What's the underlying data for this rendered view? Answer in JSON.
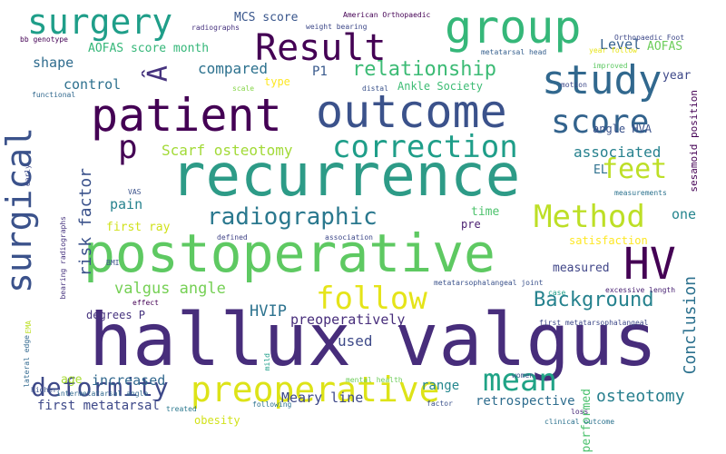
{
  "words": [
    {
      "text": "hallux valgus",
      "color": "#472d7b"
    },
    {
      "text": "recurrence",
      "color": "#2d9b87"
    },
    {
      "text": "postoperative",
      "color": "#5ec962"
    },
    {
      "text": "patient",
      "color": "#440154"
    },
    {
      "text": "outcome",
      "color": "#3b528b"
    },
    {
      "text": "group",
      "color": "#35b779"
    },
    {
      "text": "preoperative",
      "color": "#dde318"
    },
    {
      "text": "surgery",
      "color": "#1f9e89"
    },
    {
      "text": "Result",
      "color": "#440154"
    },
    {
      "text": "study",
      "color": "#31688e"
    },
    {
      "text": "surgical",
      "color": "#3b528b"
    },
    {
      "text": "correction",
      "color": "#1f9e89"
    },
    {
      "text": "score",
      "color": "#33638d"
    },
    {
      "text": "Method",
      "color": "#bddf26"
    },
    {
      "text": "HV",
      "color": "#440154"
    },
    {
      "text": "follow",
      "color": "#e5e419"
    },
    {
      "text": "mean",
      "color": "#20a386"
    },
    {
      "text": "deformity",
      "color": "#3e4989"
    },
    {
      "text": "radiographic",
      "color": "#2a788e"
    },
    {
      "text": "p",
      "color": "#440154"
    },
    {
      "text": "Â",
      "color": "#46337e"
    },
    {
      "text": "feet",
      "color": "#bddf26"
    },
    {
      "text": "relationship",
      "color": "#3cbb75"
    },
    {
      "text": "Scarf osteotomy",
      "color": "#a2da37"
    },
    {
      "text": "associated",
      "color": "#26818e"
    },
    {
      "text": "Background",
      "color": "#26828e"
    },
    {
      "text": "risk factor",
      "color": "#3b528b"
    },
    {
      "text": "valgus angle",
      "color": "#75d054"
    },
    {
      "text": "osteotomy",
      "color": "#277f8e"
    },
    {
      "text": "Conclusion",
      "color": "#2c718e"
    },
    {
      "text": "Meary line",
      "color": "#3e4989"
    },
    {
      "text": "compared",
      "color": "#2c718e"
    },
    {
      "text": "HVIP",
      "color": "#2c728e"
    },
    {
      "text": "preoperatively",
      "color": "#472d7b"
    },
    {
      "text": "increased",
      "color": "#31688e"
    },
    {
      "text": "first metatarsal",
      "color": "#3e4989"
    },
    {
      "text": "retrospective",
      "color": "#2e6d8e"
    },
    {
      "text": "performed",
      "color": "#4ac16d"
    },
    {
      "text": "Level",
      "color": "#34618d"
    },
    {
      "text": "MCS score",
      "color": "#39568c"
    },
    {
      "text": "AOFAS",
      "color": "#6ccd5a"
    },
    {
      "text": "shape",
      "color": "#2f6c8e"
    },
    {
      "text": "AOFAS score month",
      "color": "#35b779"
    },
    {
      "text": "control",
      "color": "#2d708e"
    },
    {
      "text": "P1",
      "color": "#38598c"
    },
    {
      "text": "type",
      "color": "#fde725"
    },
    {
      "text": "Ankle Society",
      "color": "#3dbc74"
    },
    {
      "text": "year",
      "color": "#3e4989"
    },
    {
      "text": "first ray",
      "color": "#d0e11c"
    },
    {
      "text": "pain",
      "color": "#26828e"
    },
    {
      "text": "pre",
      "color": "#481d6f"
    },
    {
      "text": "time",
      "color": "#4cc26c"
    },
    {
      "text": "angle HVA",
      "color": "#3b528b"
    },
    {
      "text": "EL",
      "color": "#2d708e"
    },
    {
      "text": "one",
      "color": "#25858e"
    },
    {
      "text": "satisfaction",
      "color": "#fde725"
    },
    {
      "text": "measured",
      "color": "#404688"
    },
    {
      "text": "used",
      "color": "#3e4a89"
    },
    {
      "text": "degrees P",
      "color": "#46337e"
    },
    {
      "text": "age",
      "color": "#a8db34"
    },
    {
      "text": "range",
      "color": "#24878e"
    },
    {
      "text": "obesity",
      "color": "#d2e21b"
    },
    {
      "text": "sesamoid position",
      "color": "#440154"
    },
    {
      "text": "American Orthopaedic",
      "color": "#440154"
    },
    {
      "text": "Orthopaedic Foot",
      "color": "#3e4989"
    },
    {
      "text": "radiographs",
      "color": "#46327e"
    },
    {
      "text": "weight bearing",
      "color": "#3e4989"
    },
    {
      "text": "metatarsal head",
      "color": "#355f8d"
    },
    {
      "text": "year follow",
      "color": "#e7e419"
    },
    {
      "text": "improved",
      "color": "#5ec962"
    },
    {
      "text": "bb genotype",
      "color": "#440154"
    },
    {
      "text": "functional",
      "color": "#31688e"
    },
    {
      "text": "scale",
      "color": "#86d549"
    },
    {
      "text": "distal",
      "color": "#3b528b"
    },
    {
      "text": "motion",
      "color": "#3e4989"
    },
    {
      "text": "early",
      "color": "#3e4a89"
    },
    {
      "text": "VAS",
      "color": "#3b528b"
    },
    {
      "text": "defined",
      "color": "#414487"
    },
    {
      "text": "association",
      "color": "#3e4989"
    },
    {
      "text": "measurements",
      "color": "#2c728e"
    },
    {
      "text": "BMI",
      "color": "#3b528b"
    },
    {
      "text": "effect",
      "color": "#440154"
    },
    {
      "text": "bearing radiographs",
      "color": "#46337e"
    },
    {
      "text": "EMA",
      "color": "#bddf26"
    },
    {
      "text": "metatarsophalangeal joint",
      "color": "#3b528b"
    },
    {
      "text": "excessive length",
      "color": "#482173"
    },
    {
      "text": "case",
      "color": "#1f9e89"
    },
    {
      "text": "first metatarsophalangeal",
      "color": "#3e4989"
    },
    {
      "text": "mild",
      "color": "#1f9e89"
    },
    {
      "text": "lateral edge",
      "color": "#31688e"
    },
    {
      "text": "higher",
      "color": "#3b528b"
    },
    {
      "text": "intermetatarsal angle",
      "color": "#31688e"
    },
    {
      "text": "treated",
      "color": "#2a788e"
    },
    {
      "text": "following",
      "color": "#2c728e"
    },
    {
      "text": "mental health",
      "color": "#6ccd5a"
    },
    {
      "text": "factor",
      "color": "#3b528b"
    },
    {
      "text": "women",
      "color": "#3b528b"
    },
    {
      "text": "loss",
      "color": "#482878"
    },
    {
      "text": "clinical outcome",
      "color": "#2c728e"
    }
  ]
}
